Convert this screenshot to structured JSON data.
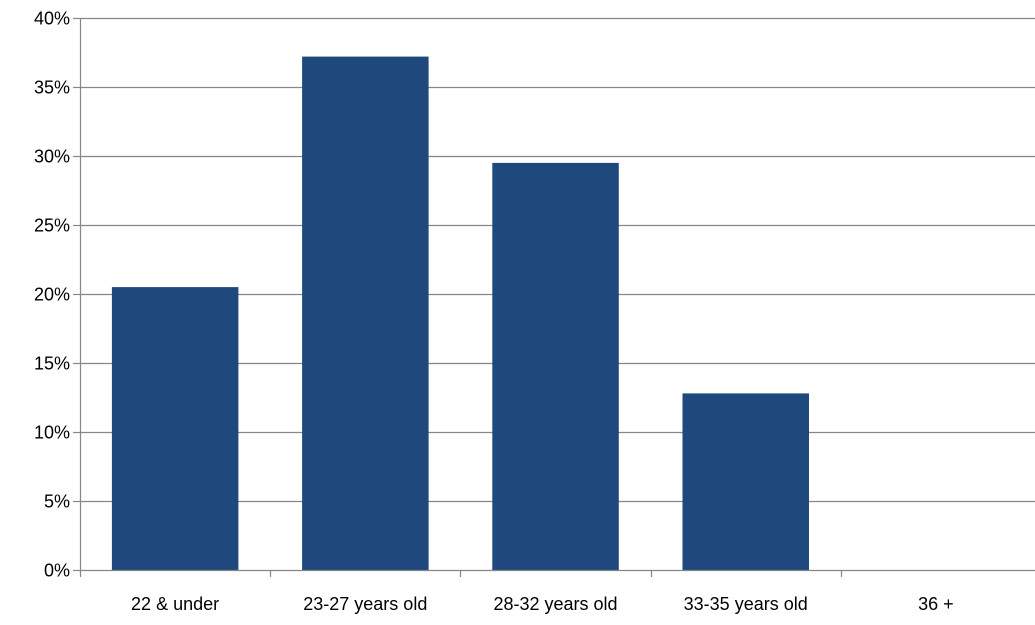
{
  "chart_data": {
    "type": "bar",
    "title": "",
    "xlabel": "",
    "ylabel": "",
    "categories": [
      "22 & under",
      "23-27 years old",
      "28-32 years old",
      "33-35 years old",
      "36 +"
    ],
    "values": [
      20.5,
      37.2,
      29.5,
      12.8,
      0
    ],
    "ylim": [
      0,
      40
    ],
    "yticks": [
      0,
      5,
      10,
      15,
      20,
      25,
      30,
      35,
      40
    ],
    "ytick_labels": [
      "0%",
      "5%",
      "10%",
      "15%",
      "20%",
      "25%",
      "30%",
      "35%",
      "40%"
    ],
    "grid": true,
    "legend": "none",
    "colors": {
      "bar": "#1F497D",
      "grid": "#868686",
      "axis": "#868686"
    }
  }
}
